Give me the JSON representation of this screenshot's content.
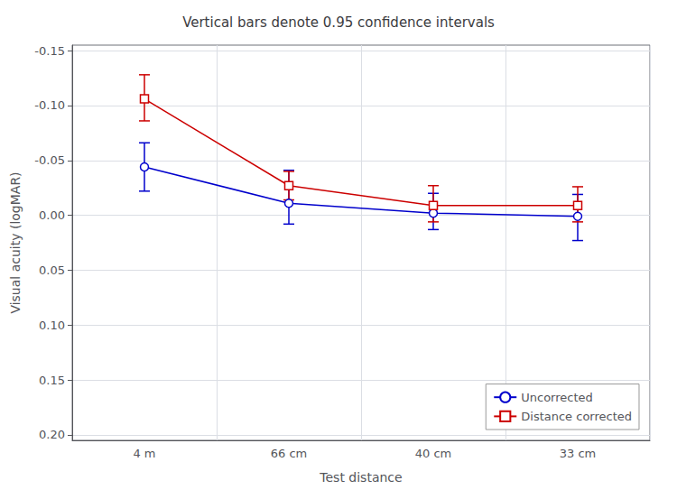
{
  "chart_data": {
    "type": "line",
    "title": "Vertical bars denote 0.95 confidence intervals",
    "xlabel": "Test distance",
    "ylabel": "Visual acuity (logMAR)",
    "categories": [
      "4 m",
      "66 cm",
      "40 cm",
      "33 cm"
    ],
    "series": [
      {
        "name": "Uncorrected",
        "color": "#0000cc",
        "marker": "circle",
        "values": [
          -0.044,
          -0.011,
          -0.002,
          0.001
        ],
        "error_lower": [
          0.022,
          0.03,
          0.018,
          0.02
        ],
        "error_upper": [
          0.022,
          0.019,
          0.015,
          0.022
        ]
      },
      {
        "name": "Distance corrected",
        "color": "#cc0000",
        "marker": "square",
        "values": [
          -0.106,
          -0.027,
          -0.009,
          -0.009
        ],
        "error_lower": [
          0.022,
          0.013,
          0.018,
          0.017
        ],
        "error_upper": [
          0.02,
          0.013,
          0.015,
          0.015
        ]
      }
    ],
    "ylim": [
      0.205,
      -0.155
    ],
    "yticks": [
      -0.15,
      {
        "value": -0.1,
        "label": "-0.10"
      },
      -0.05,
      {
        "value": 0,
        "label": "0.00"
      },
      0.05,
      {
        "value": 0.1,
        "label": "0.10"
      },
      0.15,
      {
        "value": 0.2,
        "label": "0.20"
      }
    ],
    "grid": true,
    "legend": "lower right"
  }
}
